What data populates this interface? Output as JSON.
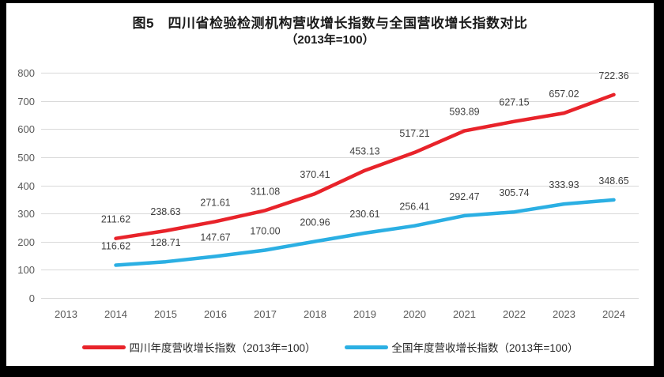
{
  "title": {
    "line1": "图5　四川省检验检测机构营收增长指数与全国营收增长指数对比",
    "line2": "（2013年=100）"
  },
  "colors": {
    "frame": "#000000",
    "background": "#ffffff",
    "grid_line": "#d9d9d9",
    "axis_text": "#595959",
    "data_label_text": "#3f3f3f",
    "title_text": "#1a1a1a",
    "sichuan_red": "#e8232a",
    "national_blue": "#2bafe3"
  },
  "chart_data": {
    "type": "line",
    "title": "图5　四川省检验检测机构营收增长指数与全国营收增长指数对比（2013年=100）",
    "xlabel": "",
    "ylabel": "",
    "ylim": [
      0,
      800
    ],
    "yticks": [
      0,
      100,
      200,
      300,
      400,
      500,
      600,
      700,
      800
    ],
    "grid": "horizontal",
    "legend_position": "bottom",
    "data_labels": "above-points, two decimal places",
    "categories": [
      "2013",
      "2014",
      "2015",
      "2016",
      "2017",
      "2018",
      "2019",
      "2020",
      "2021",
      "2022",
      "2023",
      "2024"
    ],
    "series": [
      {
        "name": "四川年度营收增长指数（2013年=100）",
        "color": "#e8232a",
        "values": [
          null,
          211.62,
          238.63,
          271.61,
          311.08,
          370.41,
          453.13,
          517.21,
          593.89,
          627.15,
          657.02,
          722.36
        ]
      },
      {
        "name": "全国年度营收增长指数（2013年=100）",
        "color": "#2bafe3",
        "values": [
          null,
          116.62,
          128.71,
          147.67,
          170.0,
          200.96,
          230.61,
          256.41,
          292.47,
          305.74,
          333.93,
          348.65
        ]
      }
    ]
  }
}
